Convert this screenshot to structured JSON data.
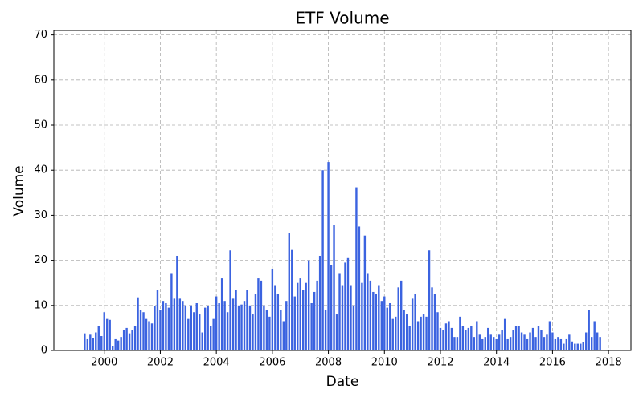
{
  "chart_data": {
    "type": "bar",
    "title": "ETF Volume",
    "x_label": "Date",
    "y_label": "Volume",
    "color": "#3b63e0",
    "x": [
      1999.3,
      1999.4,
      1999.5,
      1999.6,
      1999.7,
      1999.8,
      1999.9,
      2000.0,
      2000.1,
      2000.2,
      2000.3,
      2000.4,
      2000.5,
      2000.6,
      2000.7,
      2000.8,
      2000.9,
      2001.0,
      2001.1,
      2001.2,
      2001.3,
      2001.4,
      2001.5,
      2001.6,
      2001.7,
      2001.8,
      2001.9,
      2002.0,
      2002.1,
      2002.2,
      2002.3,
      2002.4,
      2002.5,
      2002.6,
      2002.7,
      2002.8,
      2002.9,
      2003.0,
      2003.1,
      2003.2,
      2003.3,
      2003.4,
      2003.5,
      2003.6,
      2003.7,
      2003.8,
      2003.9,
      2004.0,
      2004.1,
      2004.2,
      2004.3,
      2004.4,
      2004.5,
      2004.6,
      2004.7,
      2004.8,
      2004.9,
      2005.0,
      2005.1,
      2005.2,
      2005.3,
      2005.4,
      2005.5,
      2005.6,
      2005.7,
      2005.8,
      2005.9,
      2006.0,
      2006.1,
      2006.2,
      2006.3,
      2006.4,
      2006.5,
      2006.6,
      2006.7,
      2006.8,
      2006.9,
      2007.0,
      2007.1,
      2007.2,
      2007.3,
      2007.4,
      2007.5,
      2007.6,
      2007.7,
      2007.8,
      2007.9,
      2008.0,
      2008.1,
      2008.2,
      2008.3,
      2008.4,
      2008.5,
      2008.6,
      2008.7,
      2008.8,
      2008.9,
      2009.0,
      2009.1,
      2009.2,
      2009.3,
      2009.4,
      2009.5,
      2009.6,
      2009.7,
      2009.8,
      2009.9,
      2010.0,
      2010.1,
      2010.2,
      2010.3,
      2010.4,
      2010.5,
      2010.6,
      2010.7,
      2010.8,
      2010.9,
      2011.0,
      2011.1,
      2011.2,
      2011.3,
      2011.4,
      2011.5,
      2011.6,
      2011.7,
      2011.8,
      2011.9,
      2012.0,
      2012.1,
      2012.2,
      2012.3,
      2012.4,
      2012.5,
      2012.6,
      2012.7,
      2012.8,
      2012.9,
      2013.0,
      2013.1,
      2013.2,
      2013.3,
      2013.4,
      2013.5,
      2013.6,
      2013.7,
      2013.8,
      2013.9,
      2014.0,
      2014.1,
      2014.2,
      2014.3,
      2014.4,
      2014.5,
      2014.6,
      2014.7,
      2014.8,
      2014.9,
      2015.0,
      2015.1,
      2015.2,
      2015.3,
      2015.4,
      2015.5,
      2015.6,
      2015.7,
      2015.8,
      2015.9,
      2016.0,
      2016.1,
      2016.2,
      2016.3,
      2016.4,
      2016.5,
      2016.6,
      2016.7,
      2016.8,
      2016.9,
      2017.0,
      2017.1,
      2017.2,
      2017.3,
      2017.4,
      2017.5,
      2017.6,
      2017.7
    ],
    "values": [
      3.8,
      2.5,
      3.5,
      2.8,
      4.0,
      5.5,
      3.2,
      8.5,
      7.0,
      6.8,
      1.0,
      2.5,
      2.2,
      3.0,
      4.5,
      5.0,
      3.8,
      4.5,
      5.5,
      11.8,
      9.0,
      8.5,
      7.0,
      6.5,
      6.0,
      9.8,
      13.5,
      9.0,
      11.0,
      10.5,
      9.5,
      17.0,
      11.5,
      21.0,
      11.5,
      11.0,
      10.0,
      7.0,
      10.0,
      8.5,
      10.5,
      8.0,
      4.0,
      9.5,
      9.8,
      5.5,
      7.0,
      12.0,
      10.5,
      16.0,
      11.0,
      8.5,
      22.2,
      11.5,
      13.5,
      10.0,
      10.2,
      11.0,
      13.5,
      10.0,
      8.0,
      12.5,
      16.0,
      15.5,
      10.0,
      9.0,
      7.5,
      18.0,
      14.5,
      12.5,
      9.0,
      6.5,
      11.0,
      26.0,
      22.3,
      12.0,
      15.0,
      16.0,
      13.5,
      15.0,
      20.0,
      10.5,
      13.0,
      15.5,
      21.0,
      40.0,
      9.0,
      41.8,
      19.0,
      27.8,
      8.0,
      17.0,
      14.5,
      19.5,
      20.5,
      14.5,
      10.0,
      36.2,
      27.5,
      15.0,
      25.5,
      17.0,
      15.5,
      13.0,
      12.5,
      14.5,
      11.0,
      12.0,
      9.5,
      10.5,
      7.0,
      7.5,
      14.0,
      15.5,
      9.0,
      8.0,
      5.5,
      11.5,
      12.5,
      6.5,
      7.5,
      8.0,
      7.5,
      22.2,
      14.0,
      12.5,
      8.5,
      5.0,
      4.5,
      6.0,
      6.5,
      5.0,
      3.0,
      3.0,
      7.5,
      5.5,
      4.5,
      5.0,
      5.5,
      3.0,
      6.5,
      3.5,
      2.5,
      3.0,
      5.0,
      3.5,
      3.0,
      2.5,
      3.5,
      4.5,
      7.0,
      2.5,
      3.0,
      4.5,
      5.5,
      5.5,
      4.0,
      3.5,
      2.5,
      4.0,
      5.0,
      3.0,
      5.5,
      4.5,
      3.0,
      3.5,
      6.5,
      4.0,
      2.5,
      3.0,
      2.5,
      1.5,
      2.5,
      3.5,
      2.0,
      1.5,
      1.5,
      1.5,
      1.8,
      4.0,
      9.0,
      3.0,
      6.5,
      4.0,
      3.0
    ],
    "xlim": [
      1998.2,
      2018.8
    ],
    "xticks": [
      2000,
      2002,
      2004,
      2006,
      2008,
      2010,
      2012,
      2014,
      2016,
      2018
    ],
    "ylim": [
      0,
      71
    ],
    "yticks": [
      0,
      10,
      20,
      30,
      40,
      50,
      60,
      70
    ],
    "grid": true
  }
}
